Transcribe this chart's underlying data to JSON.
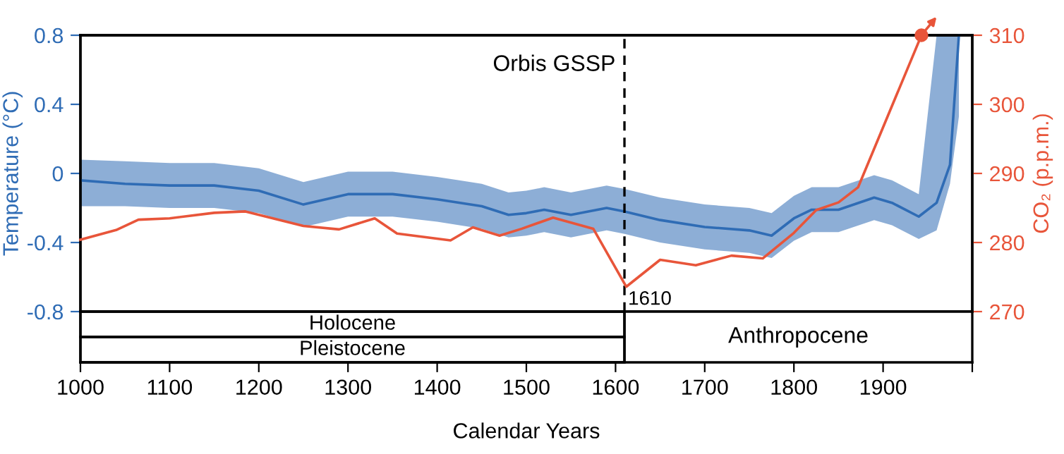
{
  "chart_data": {
    "type": "line",
    "xlabel": "Calendar Years",
    "ylabel": "Temperature (°C)",
    "y2label": "CO₂ (p.p.m.)",
    "xlim": [
      1000,
      2000
    ],
    "xticks": [
      1000,
      1100,
      1200,
      1300,
      1400,
      1500,
      1600,
      1700,
      1800,
      1900,
      {
        "value": 2000,
        "label": null
      }
    ],
    "ylim": [
      -0.8,
      0.8
    ],
    "yticks": [
      0.8,
      0.4,
      0,
      {
        "value": -0.4,
        "label": "-0.4"
      },
      {
        "value": -0.8,
        "label": "-0.8"
      }
    ],
    "y2lim": [
      270,
      310
    ],
    "y2ticks": [
      270,
      280,
      290,
      300,
      310
    ],
    "grid": false,
    "series": [
      {
        "color": "#2f6cb5",
        "x": [
          1000,
          1050,
          1100,
          1150,
          1200,
          1250,
          1300,
          1350,
          1400,
          1450,
          1480,
          1500,
          1520,
          1550,
          1590,
          1610,
          1650,
          1700,
          1750,
          1775,
          1800,
          1820,
          1850,
          1890,
          1910,
          1940,
          1960,
          1975,
          1985
        ],
        "values": [
          -0.04,
          -0.06,
          -0.07,
          -0.07,
          -0.1,
          -0.18,
          -0.12,
          -0.12,
          -0.15,
          -0.19,
          -0.24,
          -0.23,
          -0.21,
          -0.24,
          -0.2,
          -0.22,
          -0.27,
          -0.31,
          -0.33,
          -0.36,
          -0.26,
          -0.21,
          -0.21,
          -0.14,
          -0.17,
          -0.25,
          -0.17,
          0.05,
          0.8
        ],
        "upper": [
          0.08,
          0.07,
          0.06,
          0.06,
          0.03,
          -0.05,
          0.01,
          0.01,
          -0.02,
          -0.06,
          -0.11,
          -0.1,
          -0.08,
          -0.11,
          -0.07,
          -0.09,
          -0.14,
          -0.18,
          -0.2,
          -0.23,
          -0.13,
          -0.08,
          -0.08,
          -0.01,
          -0.04,
          -0.12,
          0.8,
          0.8,
          0.8
        ],
        "lower": [
          -0.19,
          -0.19,
          -0.2,
          -0.2,
          -0.23,
          -0.31,
          -0.25,
          -0.25,
          -0.28,
          -0.32,
          -0.37,
          -0.36,
          -0.34,
          -0.37,
          -0.33,
          -0.35,
          -0.4,
          -0.44,
          -0.46,
          -0.49,
          -0.39,
          -0.34,
          -0.34,
          -0.27,
          -0.3,
          -0.38,
          -0.33,
          -0.06,
          0.33
        ]
      },
      {
        "color": "#e8553a",
        "axis": "y2",
        "x": [
          1000,
          1040,
          1065,
          1100,
          1150,
          1185,
          1250,
          1290,
          1330,
          1355,
          1415,
          1440,
          1470,
          1495,
          1530,
          1575,
          1612,
          1650,
          1690,
          1730,
          1765,
          1800,
          1825,
          1850,
          1872,
          1943
        ],
        "values": [
          280.4,
          281.8,
          283.3,
          283.5,
          284.3,
          284.5,
          282.4,
          281.9,
          283.5,
          281.3,
          280.3,
          282.2,
          281.0,
          282.0,
          283.6,
          282.0,
          273.6,
          277.5,
          276.7,
          278.1,
          277.7,
          281.4,
          284.7,
          285.8,
          288.0,
          310.0
        ]
      }
    ],
    "ref_lines": [
      {
        "axis": "x",
        "value": 1610,
        "label": "Orbis GSSP",
        "color": "#000000",
        "line_style": "dashed"
      }
    ],
    "annotations": [
      "1610",
      "Holocene",
      "Pleistocene",
      "Anthropocene"
    ]
  }
}
